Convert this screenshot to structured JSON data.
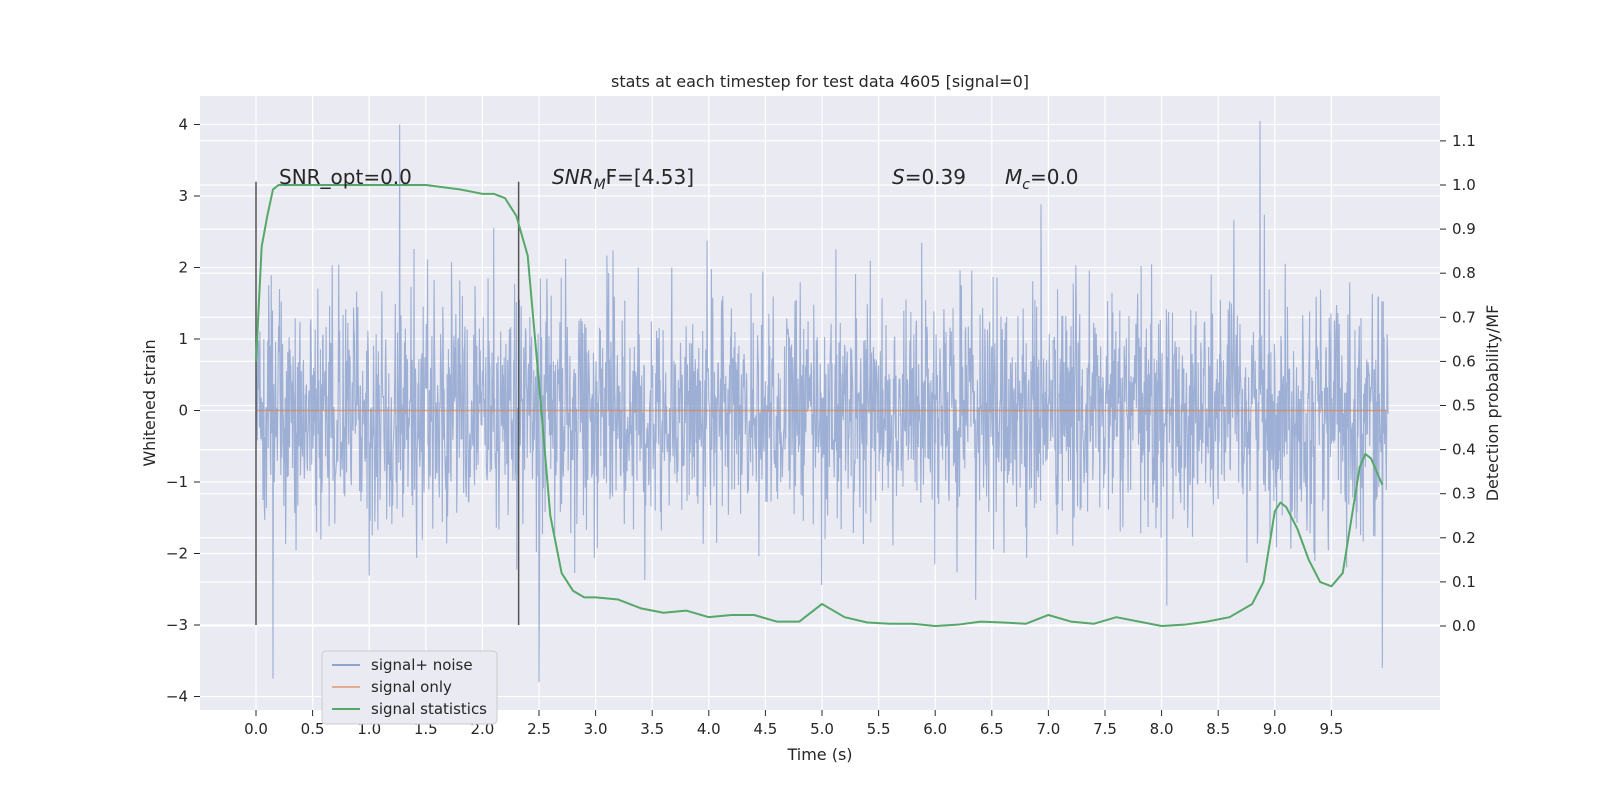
{
  "chart_data": {
    "type": "line",
    "title": "stats at each timestep for test data 4605 [signal=0]",
    "xlabel": "Time (s)",
    "ylabel": "Whitened strain",
    "ylabel_right": "Detection probability/MF",
    "xlim": [
      -0.5,
      10.5
    ],
    "ylim": [
      -4.2,
      4.4
    ],
    "ylim_right": [
      -0.24,
      1.19
    ],
    "x_ticks": [
      "0.0",
      "0.5",
      "1.0",
      "1.5",
      "2.0",
      "2.5",
      "3.0",
      "3.5",
      "4.0",
      "4.5",
      "5.0",
      "5.5",
      "6.0",
      "6.5",
      "7.0",
      "7.5",
      "8.0",
      "8.5",
      "9.0",
      "9.5"
    ],
    "y_ticks": [
      "4",
      "3",
      "2",
      "1",
      "0",
      "−1",
      "−2",
      "−3",
      "−4"
    ],
    "y_ticks_right": [
      "1.1",
      "1.0",
      "0.9",
      "0.8",
      "0.7",
      "0.6",
      "0.5",
      "0.4",
      "0.3",
      "0.2",
      "0.1",
      "0.0"
    ],
    "grid": true,
    "legend_position": "lower-left",
    "annotations": {
      "snr_opt": "SNR_opt=0.0",
      "snr_mf_main": "SNR",
      "snr_mf_sub": "M",
      "snr_mf_rest": "F=[4.53]",
      "s_label": "S",
      "s_value": "=0.39",
      "mc_label": "M",
      "mc_sub": "c",
      "mc_value": "=0.0"
    },
    "vertical_markers": [
      {
        "x": 0.0,
        "y_range": [
          -3.0,
          3.2
        ]
      },
      {
        "x": 2.32,
        "y_range": [
          -3.0,
          3.2
        ]
      }
    ],
    "series": [
      {
        "name": "signal+ noise",
        "color": "#8fa5cf",
        "description_type": "noise",
        "x_range": [
          0.0,
          10.0
        ],
        "typical_envelope": [
          -1.5,
          1.5
        ],
        "notable_peaks": [
          {
            "x": 1.27,
            "y": 4.0
          },
          {
            "x": 8.87,
            "y": 4.05
          },
          {
            "x": 0.15,
            "y": -3.75
          },
          {
            "x": 2.5,
            "y": -3.8
          },
          {
            "x": 9.95,
            "y": -3.6
          }
        ]
      },
      {
        "name": "signal only",
        "color": "#dd8452",
        "x": [
          0.0,
          10.0
        ],
        "values": [
          0.0,
          0.0
        ]
      },
      {
        "name": "signal statistics",
        "color": "#55a868",
        "axis": "right",
        "x": [
          0.0,
          0.05,
          0.1,
          0.15,
          0.2,
          0.3,
          0.5,
          1.0,
          1.5,
          1.8,
          2.0,
          2.1,
          2.2,
          2.3,
          2.4,
          2.5,
          2.6,
          2.7,
          2.8,
          2.9,
          3.0,
          3.2,
          3.4,
          3.6,
          3.8,
          4.0,
          4.2,
          4.4,
          4.6,
          4.8,
          5.0,
          5.2,
          5.4,
          5.6,
          5.8,
          6.0,
          6.2,
          6.4,
          6.6,
          6.8,
          7.0,
          7.2,
          7.4,
          7.6,
          7.8,
          8.0,
          8.2,
          8.4,
          8.6,
          8.8,
          8.9,
          9.0,
          9.05,
          9.1,
          9.2,
          9.3,
          9.4,
          9.5,
          9.6,
          9.7,
          9.75,
          9.8,
          9.85,
          9.9,
          9.95
        ],
        "values": [
          0.6,
          0.86,
          0.93,
          0.99,
          1.0,
          1.0,
          1.0,
          1.0,
          1.0,
          0.99,
          0.98,
          0.98,
          0.97,
          0.93,
          0.84,
          0.55,
          0.25,
          0.12,
          0.08,
          0.065,
          0.065,
          0.06,
          0.04,
          0.03,
          0.035,
          0.02,
          0.025,
          0.025,
          0.01,
          0.01,
          0.05,
          0.02,
          0.008,
          0.005,
          0.005,
          0.0,
          0.003,
          0.01,
          0.008,
          0.005,
          0.025,
          0.01,
          0.005,
          0.02,
          0.01,
          0.0,
          0.003,
          0.01,
          0.02,
          0.05,
          0.1,
          0.26,
          0.28,
          0.27,
          0.22,
          0.15,
          0.1,
          0.09,
          0.12,
          0.28,
          0.36,
          0.39,
          0.38,
          0.35,
          0.32
        ]
      }
    ]
  }
}
